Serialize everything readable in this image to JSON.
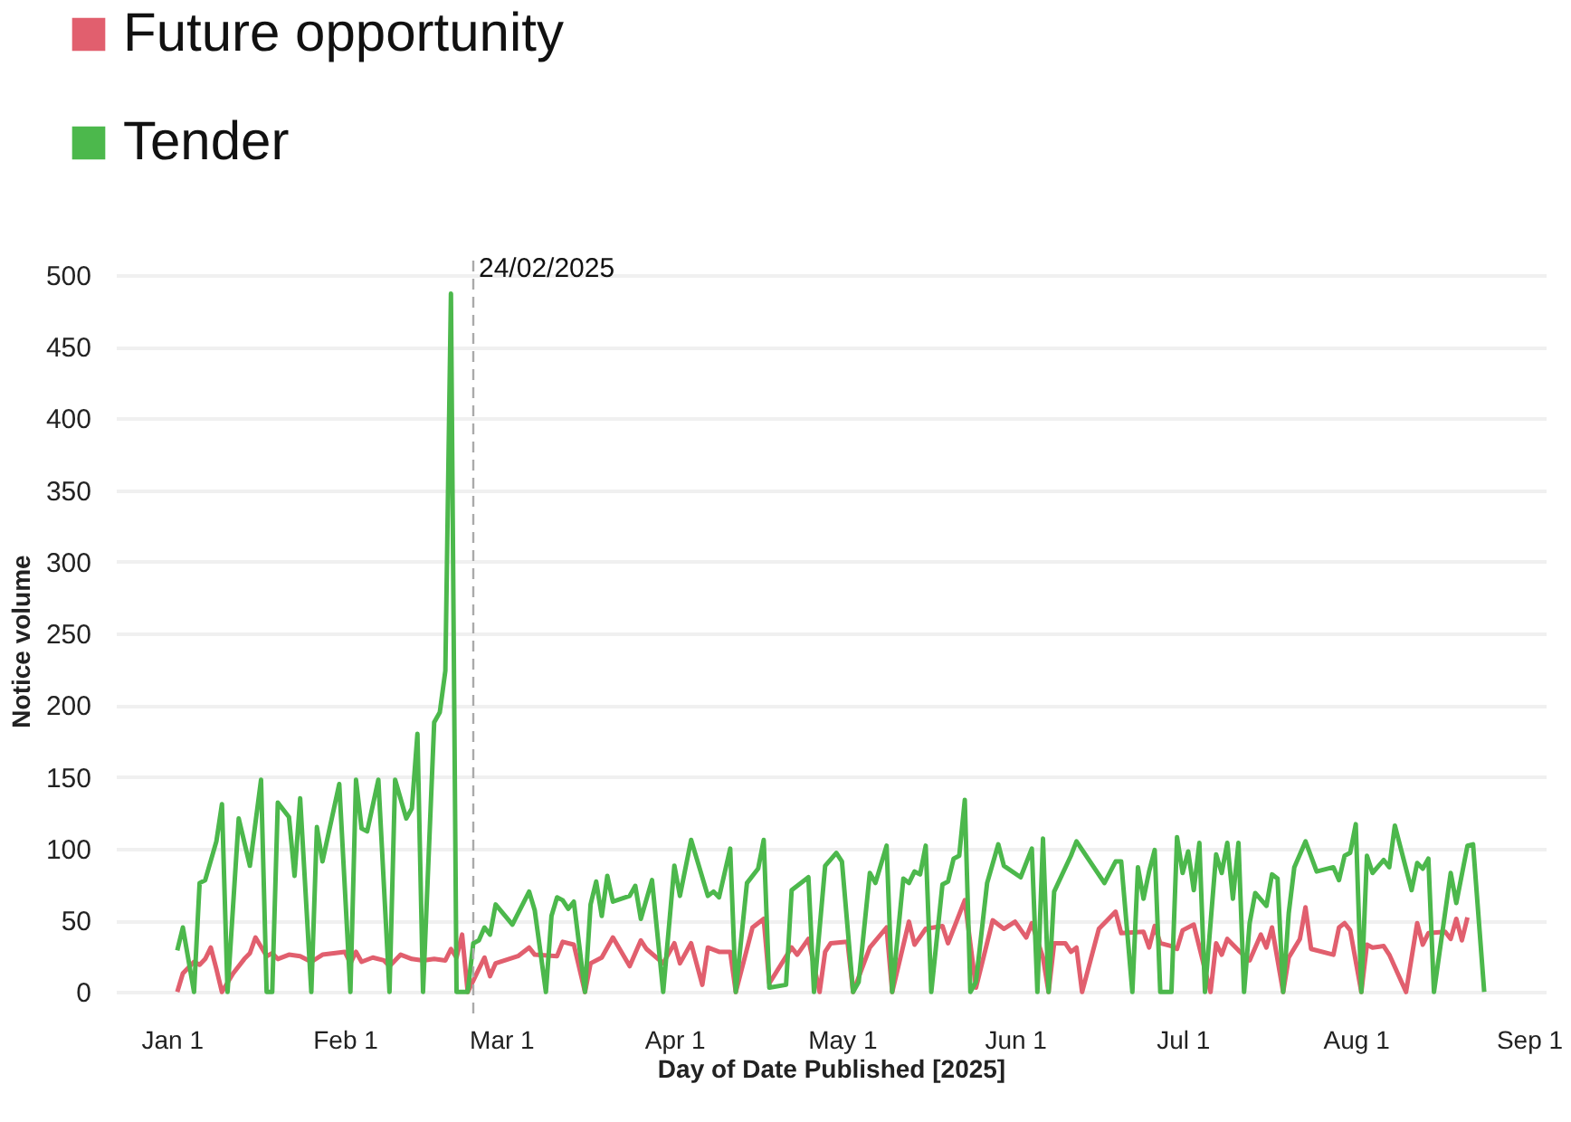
{
  "chart_data": {
    "type": "line",
    "xlabel": "Day of Date Published [2025]",
    "ylabel": "Notice volume",
    "legend": "top left",
    "grid": "y",
    "line_style": "solid",
    "marker": "none",
    "xlim": [
      "2024-12-22",
      "2025-09-04"
    ],
    "xticks": [
      {
        "value": "2025-01-01",
        "label": "Jan 1"
      },
      {
        "value": "2025-02-01",
        "label": "Feb 1"
      },
      {
        "value": "2025-03-01",
        "label": "Mar 1"
      },
      {
        "value": "2025-04-01",
        "label": "Apr 1"
      },
      {
        "value": "2025-05-01",
        "label": "May 1"
      },
      {
        "value": "2025-06-01",
        "label": "Jun 1"
      },
      {
        "value": "2025-07-01",
        "label": "Jul 1"
      },
      {
        "value": "2025-08-01",
        "label": "Aug 1"
      },
      {
        "value": "2025-09-01",
        "label": "Sep 1"
      }
    ],
    "ylim": [
      -20,
      510
    ],
    "yticks": [
      0,
      50,
      100,
      150,
      200,
      250,
      300,
      350,
      400,
      450,
      500
    ],
    "ref_lines": [
      {
        "axis": "x",
        "value": "2025-02-24",
        "label": "24/02/2025",
        "color": "#aaaaaa",
        "line_style": "dashed"
      }
    ],
    "series": [
      {
        "name": "Future opportunity",
        "color": "#e15f6e",
        "x": [
          "2025-01-02",
          "2025-01-03",
          "2025-01-05",
          "2025-01-06",
          "2025-01-07",
          "2025-01-08",
          "2025-01-09",
          "2025-01-10",
          "2025-01-12",
          "2025-01-14",
          "2025-01-15",
          "2025-01-16",
          "2025-01-18",
          "2025-01-19",
          "2025-01-20",
          "2025-01-22",
          "2025-01-24",
          "2025-01-26",
          "2025-01-28",
          "2025-01-30",
          "2025-02-01",
          "2025-02-02",
          "2025-02-03",
          "2025-02-04",
          "2025-02-06",
          "2025-02-08",
          "2025-02-09",
          "2025-02-11",
          "2025-02-13",
          "2025-02-15",
          "2025-02-17",
          "2025-02-19",
          "2025-02-20",
          "2025-02-21",
          "2025-02-22",
          "2025-02-23",
          "2025-02-26",
          "2025-02-27",
          "2025-02-28",
          "2025-03-04",
          "2025-03-06",
          "2025-03-07",
          "2025-03-11",
          "2025-03-12",
          "2025-03-14",
          "2025-03-16",
          "2025-03-17",
          "2025-03-19",
          "2025-03-21",
          "2025-03-24",
          "2025-03-26",
          "2025-03-27",
          "2025-03-30",
          "2025-04-01",
          "2025-04-02",
          "2025-04-04",
          "2025-04-06",
          "2025-04-07",
          "2025-04-09",
          "2025-04-11",
          "2025-04-12",
          "2025-04-15",
          "2025-04-17",
          "2025-04-18",
          "2025-04-22",
          "2025-04-23",
          "2025-04-25",
          "2025-04-27",
          "2025-04-28",
          "2025-04-29",
          "2025-05-02",
          "2025-05-03",
          "2025-05-06",
          "2025-05-09",
          "2025-05-10",
          "2025-05-13",
          "2025-05-14",
          "2025-05-16",
          "2025-05-19",
          "2025-05-20",
          "2025-05-23",
          "2025-05-25",
          "2025-05-28",
          "2025-05-30",
          "2025-06-01",
          "2025-06-03",
          "2025-06-04",
          "2025-06-06",
          "2025-06-07",
          "2025-06-08",
          "2025-06-10",
          "2025-06-11",
          "2025-06-12",
          "2025-06-13",
          "2025-06-16",
          "2025-06-19",
          "2025-06-20",
          "2025-06-24",
          "2025-06-25",
          "2025-06-26",
          "2025-06-27",
          "2025-06-29",
          "2025-06-30",
          "2025-07-01",
          "2025-07-03",
          "2025-07-06",
          "2025-07-07",
          "2025-07-08",
          "2025-07-09",
          "2025-07-11",
          "2025-07-13",
          "2025-07-15",
          "2025-07-16",
          "2025-07-17",
          "2025-07-19",
          "2025-07-20",
          "2025-07-22",
          "2025-07-23",
          "2025-07-24",
          "2025-07-28",
          "2025-07-29",
          "2025-07-30",
          "2025-07-31",
          "2025-08-02",
          "2025-08-03",
          "2025-08-04",
          "2025-08-06",
          "2025-08-07",
          "2025-08-10",
          "2025-08-12",
          "2025-08-13",
          "2025-08-14",
          "2025-08-17",
          "2025-08-18",
          "2025-08-19",
          "2025-08-20",
          "2025-08-21"
        ],
        "values": [
          0,
          13,
          21,
          19,
          23,
          31,
          16,
          0,
          13,
          23,
          27,
          38,
          25,
          27,
          23,
          26,
          25,
          21,
          26,
          27,
          28,
          20,
          28,
          21,
          24,
          22,
          18,
          26,
          23,
          22,
          23,
          22,
          30,
          24,
          40,
          0,
          24,
          11,
          20,
          25,
          31,
          26,
          25,
          35,
          33,
          0,
          20,
          24,
          38,
          18,
          36,
          30,
          20,
          34,
          20,
          34,
          5,
          31,
          28,
          28,
          0,
          45,
          51,
          6,
          31,
          26,
          37,
          0,
          28,
          34,
          35,
          0,
          31,
          45,
          0,
          49,
          33,
          44,
          46,
          34,
          64,
          3,
          50,
          44,
          49,
          38,
          48,
          24,
          0,
          34,
          34,
          28,
          31,
          0,
          44,
          56,
          41,
          42,
          31,
          46,
          34,
          32,
          30,
          43,
          47,
          0,
          34,
          26,
          37,
          29,
          22,
          40,
          31,
          45,
          0,
          24,
          37,
          59,
          30,
          26,
          45,
          48,
          43,
          0,
          33,
          31,
          32,
          26,
          0,
          48,
          33,
          41,
          42,
          37,
          51,
          36,
          52
        ]
      },
      {
        "name": "Tender",
        "color": "#4cb84c",
        "x": [
          "2025-01-02",
          "2025-01-03",
          "2025-01-05",
          "2025-01-06",
          "2025-01-07",
          "2025-01-09",
          "2025-01-10",
          "2025-01-11",
          "2025-01-13",
          "2025-01-15",
          "2025-01-17",
          "2025-01-18",
          "2025-01-19",
          "2025-01-20",
          "2025-01-22",
          "2025-01-23",
          "2025-01-24",
          "2025-01-26",
          "2025-01-27",
          "2025-01-28",
          "2025-01-31",
          "2025-02-02",
          "2025-02-03",
          "2025-02-04",
          "2025-02-05",
          "2025-02-07",
          "2025-02-09",
          "2025-02-10",
          "2025-02-12",
          "2025-02-13",
          "2025-02-14",
          "2025-02-15",
          "2025-02-17",
          "2025-02-18",
          "2025-02-19",
          "2025-02-20",
          "2025-02-21",
          "2025-02-22",
          "2025-02-23",
          "2025-02-24",
          "2025-02-25",
          "2025-02-26",
          "2025-02-27",
          "2025-02-28",
          "2025-03-03",
          "2025-03-06",
          "2025-03-07",
          "2025-03-09",
          "2025-03-10",
          "2025-03-11",
          "2025-03-12",
          "2025-03-13",
          "2025-03-14",
          "2025-03-16",
          "2025-03-17",
          "2025-03-18",
          "2025-03-19",
          "2025-03-20",
          "2025-03-21",
          "2025-03-24",
          "2025-03-25",
          "2025-03-26",
          "2025-03-28",
          "2025-03-30",
          "2025-04-01",
          "2025-04-02",
          "2025-04-04",
          "2025-04-07",
          "2025-04-08",
          "2025-04-09",
          "2025-04-11",
          "2025-04-12",
          "2025-04-14",
          "2025-04-16",
          "2025-04-17",
          "2025-04-18",
          "2025-04-21",
          "2025-04-22",
          "2025-04-25",
          "2025-04-26",
          "2025-04-28",
          "2025-04-30",
          "2025-05-01",
          "2025-05-03",
          "2025-05-04",
          "2025-05-06",
          "2025-05-07",
          "2025-05-09",
          "2025-05-10",
          "2025-05-12",
          "2025-05-13",
          "2025-05-14",
          "2025-05-15",
          "2025-05-16",
          "2025-05-17",
          "2025-05-19",
          "2025-05-20",
          "2025-05-21",
          "2025-05-22",
          "2025-05-23",
          "2025-05-24",
          "2025-05-25",
          "2025-05-27",
          "2025-05-29",
          "2025-05-30",
          "2025-06-02",
          "2025-06-04",
          "2025-06-05",
          "2025-06-06",
          "2025-06-07",
          "2025-06-08",
          "2025-06-11",
          "2025-06-12",
          "2025-06-17",
          "2025-06-19",
          "2025-06-20",
          "2025-06-22",
          "2025-06-23",
          "2025-06-24",
          "2025-06-25",
          "2025-06-26",
          "2025-06-27",
          "2025-06-29",
          "2025-06-30",
          "2025-07-01",
          "2025-07-02",
          "2025-07-03",
          "2025-07-04",
          "2025-07-05",
          "2025-07-07",
          "2025-07-08",
          "2025-07-09",
          "2025-07-10",
          "2025-07-11",
          "2025-07-12",
          "2025-07-13",
          "2025-07-14",
          "2025-07-16",
          "2025-07-17",
          "2025-07-18",
          "2025-07-19",
          "2025-07-20",
          "2025-07-21",
          "2025-07-23",
          "2025-07-25",
          "2025-07-28",
          "2025-07-29",
          "2025-07-30",
          "2025-07-31",
          "2025-08-01",
          "2025-08-02",
          "2025-08-03",
          "2025-08-04",
          "2025-08-06",
          "2025-08-07",
          "2025-08-08",
          "2025-08-11",
          "2025-08-12",
          "2025-08-13",
          "2025-08-14",
          "2025-08-15",
          "2025-08-18",
          "2025-08-19",
          "2025-08-21",
          "2025-08-22",
          "2025-08-24"
        ],
        "values": [
          29,
          45,
          0,
          76,
          78,
          105,
          131,
          0,
          121,
          88,
          148,
          0,
          0,
          132,
          122,
          81,
          135,
          0,
          115,
          91,
          145,
          0,
          148,
          114,
          112,
          148,
          0,
          148,
          121,
          128,
          180,
          0,
          188,
          195,
          224,
          487,
          0,
          0,
          0,
          34,
          36,
          45,
          40,
          61,
          47,
          70,
          57,
          0,
          53,
          66,
          64,
          58,
          63,
          0,
          61,
          77,
          53,
          81,
          63,
          67,
          74,
          51,
          78,
          0,
          88,
          67,
          106,
          67,
          70,
          66,
          100,
          0,
          76,
          86,
          106,
          3,
          5,
          71,
          80,
          0,
          88,
          97,
          91,
          0,
          7,
          83,
          76,
          102,
          0,
          79,
          76,
          84,
          82,
          102,
          0,
          75,
          77,
          93,
          95,
          134,
          0,
          7,
          76,
          103,
          88,
          80,
          100,
          0,
          107,
          0,
          70,
          95,
          105,
          76,
          91,
          91,
          0,
          87,
          65,
          84,
          99,
          0,
          0,
          108,
          83,
          98,
          71,
          104,
          0,
          96,
          83,
          104,
          65,
          104,
          0,
          48,
          69,
          60,
          82,
          79,
          0,
          55,
          87,
          105,
          84,
          87,
          78,
          95,
          97,
          117,
          0,
          95,
          83,
          92,
          87,
          116,
          71,
          90,
          86,
          93,
          0,
          83,
          62,
          102,
          103,
          0
        ]
      }
    ]
  }
}
